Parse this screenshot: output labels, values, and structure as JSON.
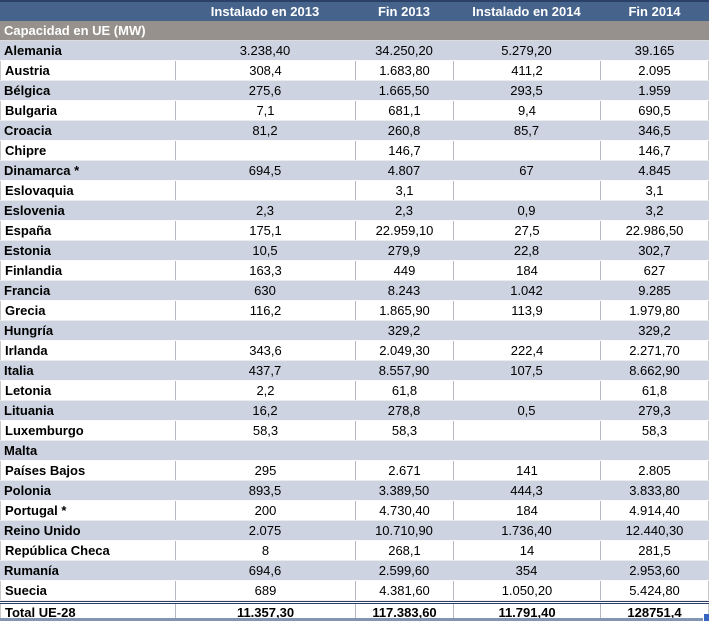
{
  "chart_data": {
    "type": "table",
    "title": "Capacidad en UE (MW)",
    "columns": [
      "",
      "Instalado en 2013",
      "Fin 2013",
      "Instalado en 2014",
      "Fin 2014"
    ],
    "rows": [
      {
        "country": "Alemania",
        "values": [
          "3.238,40",
          "34.250,20",
          "5.279,20",
          "39.165"
        ]
      },
      {
        "country": "Austria",
        "values": [
          "308,4",
          "1.683,80",
          "411,2",
          "2.095"
        ]
      },
      {
        "country": "Bélgica",
        "values": [
          "275,6",
          "1.665,50",
          "293,5",
          "1.959"
        ]
      },
      {
        "country": "Bulgaria",
        "values": [
          "7,1",
          "681,1",
          "9,4",
          "690,5"
        ]
      },
      {
        "country": "Croacia",
        "values": [
          "81,2",
          "260,8",
          "85,7",
          "346,5"
        ]
      },
      {
        "country": "Chipre",
        "values": [
          "",
          "146,7",
          "",
          "146,7"
        ]
      },
      {
        "country": "Dinamarca *",
        "values": [
          "694,5",
          "4.807",
          "67",
          "4.845"
        ]
      },
      {
        "country": "Eslovaquia",
        "values": [
          "",
          "3,1",
          "",
          "3,1"
        ]
      },
      {
        "country": "Eslovenia",
        "values": [
          "2,3",
          "2,3",
          "0,9",
          "3,2"
        ]
      },
      {
        "country": "España",
        "values": [
          "175,1",
          "22.959,10",
          "27,5",
          "22.986,50"
        ]
      },
      {
        "country": "Estonia",
        "values": [
          "10,5",
          "279,9",
          "22,8",
          "302,7"
        ]
      },
      {
        "country": "Finlandia",
        "values": [
          "163,3",
          "449",
          "184",
          "627"
        ]
      },
      {
        "country": "Francia",
        "values": [
          "630",
          "8.243",
          "1.042",
          "9.285"
        ]
      },
      {
        "country": "Grecia",
        "values": [
          "116,2",
          "1.865,90",
          "113,9",
          "1.979,80"
        ]
      },
      {
        "country": "Hungría",
        "values": [
          "",
          "329,2",
          "",
          "329,2"
        ]
      },
      {
        "country": "Irlanda",
        "values": [
          "343,6",
          "2.049,30",
          "222,4",
          "2.271,70"
        ]
      },
      {
        "country": "Italia",
        "values": [
          "437,7",
          "8.557,90",
          "107,5",
          "8.662,90"
        ]
      },
      {
        "country": "Letonia",
        "values": [
          "2,2",
          "61,8",
          "",
          "61,8"
        ]
      },
      {
        "country": "Lituania",
        "values": [
          "16,2",
          "278,8",
          "0,5",
          "279,3"
        ]
      },
      {
        "country": "Luxemburgo",
        "values": [
          "58,3",
          "58,3",
          "",
          "58,3"
        ]
      },
      {
        "country": "Malta",
        "values": [
          "",
          "",
          "",
          ""
        ]
      },
      {
        "country": "Países Bajos",
        "values": [
          "295",
          "2.671",
          "141",
          "2.805"
        ]
      },
      {
        "country": "Polonia",
        "values": [
          "893,5",
          "3.389,50",
          "444,3",
          "3.833,80"
        ]
      },
      {
        "country": "Portugal *",
        "values": [
          "200",
          "4.730,40",
          "184",
          "4.914,40"
        ]
      },
      {
        "country": "Reino Unido",
        "values": [
          "2.075",
          "10.710,90",
          "1.736,40",
          "12.440,30"
        ]
      },
      {
        "country": "República Checa",
        "values": [
          "8",
          "268,1",
          "14",
          "281,5"
        ]
      },
      {
        "country": "Rumanía",
        "values": [
          "694,6",
          "2.599,60",
          "354",
          "2.953,60"
        ]
      },
      {
        "country": "Suecia",
        "values": [
          "689",
          "4.381,60",
          "1.050,20",
          "5.424,80"
        ]
      }
    ],
    "total": {
      "label": "Total UE-28",
      "values": [
        "11.357,30",
        "117.383,60",
        "11.791,40",
        "128751,4"
      ]
    }
  },
  "colors": {
    "header_bg": "#46638c",
    "section_bg": "#96918c",
    "row_alt_bg": "#cdd3e0",
    "border_dark": "#26365a",
    "selection_handle": "#3465c0"
  }
}
